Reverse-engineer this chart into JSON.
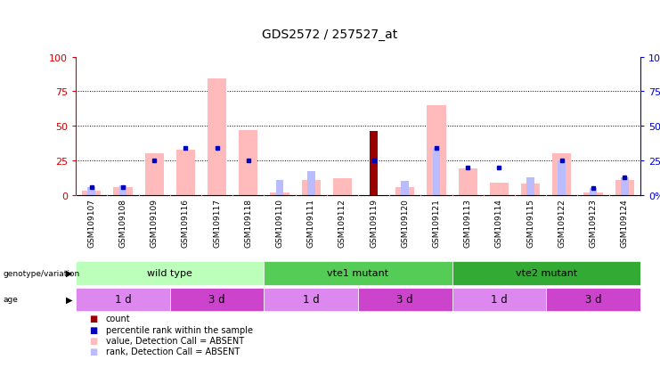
{
  "title": "GDS2572 / 257527_at",
  "samples": [
    "GSM109107",
    "GSM109108",
    "GSM109109",
    "GSM109116",
    "GSM109117",
    "GSM109118",
    "GSM109110",
    "GSM109111",
    "GSM109112",
    "GSM109119",
    "GSM109120",
    "GSM109121",
    "GSM109113",
    "GSM109114",
    "GSM109115",
    "GSM109122",
    "GSM109123",
    "GSM109124"
  ],
  "pink_bars": [
    3,
    6,
    30,
    33,
    84,
    47,
    2,
    11,
    12,
    0,
    6,
    65,
    19,
    9,
    8,
    30,
    2,
    11
  ],
  "light_blue_bars": [
    6,
    7,
    0,
    0,
    0,
    0,
    11,
    17,
    0,
    0,
    10,
    34,
    0,
    0,
    13,
    25,
    5,
    13
  ],
  "red_bars": [
    0,
    0,
    0,
    0,
    0,
    0,
    0,
    0,
    0,
    46,
    0,
    0,
    0,
    0,
    0,
    0,
    0,
    0
  ],
  "blue_dots": [
    6,
    6,
    25,
    34,
    34,
    25,
    0,
    0,
    0,
    25,
    0,
    34,
    20,
    20,
    0,
    25,
    5,
    13
  ],
  "ylim": [
    0,
    100
  ],
  "yticks": [
    0,
    25,
    50,
    75,
    100
  ],
  "grid_lines": [
    25,
    50,
    75
  ],
  "genotype_groups": [
    {
      "label": "wild type",
      "start": 0,
      "end": 5,
      "color": "#bbffbb"
    },
    {
      "label": "vte1 mutant",
      "start": 6,
      "end": 11,
      "color": "#55cc55"
    },
    {
      "label": "vte2 mutant",
      "start": 12,
      "end": 17,
      "color": "#33aa33"
    }
  ],
  "age_groups": [
    {
      "label": "1 d",
      "start": 0,
      "end": 2,
      "color": "#dd88ee"
    },
    {
      "label": "3 d",
      "start": 3,
      "end": 5,
      "color": "#cc44cc"
    },
    {
      "label": "1 d",
      "start": 6,
      "end": 8,
      "color": "#dd88ee"
    },
    {
      "label": "3 d",
      "start": 9,
      "end": 11,
      "color": "#cc44cc"
    },
    {
      "label": "1 d",
      "start": 12,
      "end": 14,
      "color": "#dd88ee"
    },
    {
      "label": "3 d",
      "start": 15,
      "end": 17,
      "color": "#cc44cc"
    }
  ],
  "pink_color": "#ffbbbb",
  "light_blue_color": "#bbbbff",
  "red_color": "#990000",
  "blue_dot_color": "#0000bb",
  "left_axis_color": "#cc0000",
  "right_axis_color": "#0000cc",
  "sample_bg_color": "#cccccc",
  "legend_items": [
    {
      "color": "#990000",
      "label": "count"
    },
    {
      "color": "#0000bb",
      "label": "percentile rank within the sample"
    },
    {
      "color": "#ffbbbb",
      "label": "value, Detection Call = ABSENT"
    },
    {
      "color": "#bbbbff",
      "label": "rank, Detection Call = ABSENT"
    }
  ]
}
